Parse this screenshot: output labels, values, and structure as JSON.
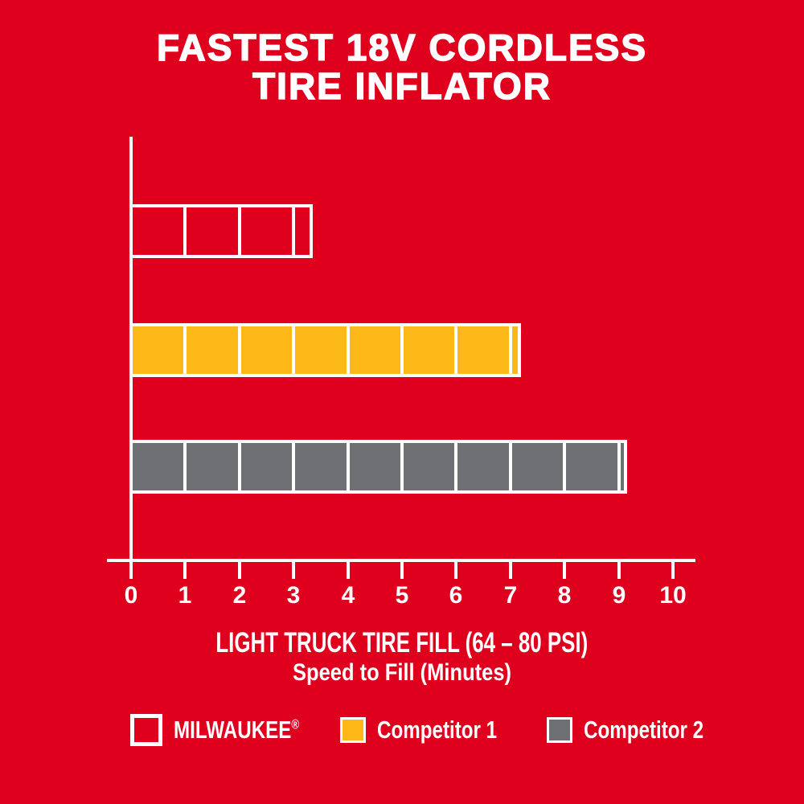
{
  "title": {
    "line1": "FASTEST 18V CORDLESS",
    "line2": "TIRE INFLATOR",
    "full": "FASTEST 18V CORDLESS TIRE INFLATOR"
  },
  "colors": {
    "background": "#DE001C",
    "milwaukee_red": "#DE001C",
    "competitor1_yellow": "#FBB817",
    "competitor2_gray": "#6F7073",
    "axis_white": "#FFFFFF"
  },
  "chart_data": {
    "type": "bar",
    "orientation": "horizontal",
    "title": "FASTEST 18V CORDLESS TIRE INFLATOR",
    "categories": [
      "MILWAUKEE®",
      "Competitor 1",
      "Competitor 2"
    ],
    "values": [
      3.35,
      7.2,
      9.15
    ],
    "bar_colors": [
      "#DE001C",
      "#FBB817",
      "#6F7073"
    ],
    "bar_outline_color": "#FFFFFF",
    "segment_lines_every": 1,
    "x_ticks": [
      0,
      1,
      2,
      3,
      4,
      5,
      6,
      7,
      8,
      9,
      10
    ],
    "xlim": [
      0,
      10
    ],
    "xlabel_primary": "LIGHT TRUCK TIRE FILL (64 – 80 PSI)",
    "xlabel_secondary": "Speed to Fill (Minutes)",
    "ylabel": "",
    "grid": false,
    "legend_position": "bottom"
  },
  "legend": {
    "items": [
      {
        "label": "MILWAUKEE",
        "sup": "®",
        "swatch_fill": "none",
        "swatch_border": "#FFFFFF"
      },
      {
        "label": "Competitor 1",
        "sup": "",
        "swatch_fill": "#FBB817",
        "swatch_border": "#FFFFFF"
      },
      {
        "label": "Competitor 2",
        "sup": "",
        "swatch_fill": "#6F7073",
        "swatch_border": "#FFFFFF"
      }
    ]
  }
}
